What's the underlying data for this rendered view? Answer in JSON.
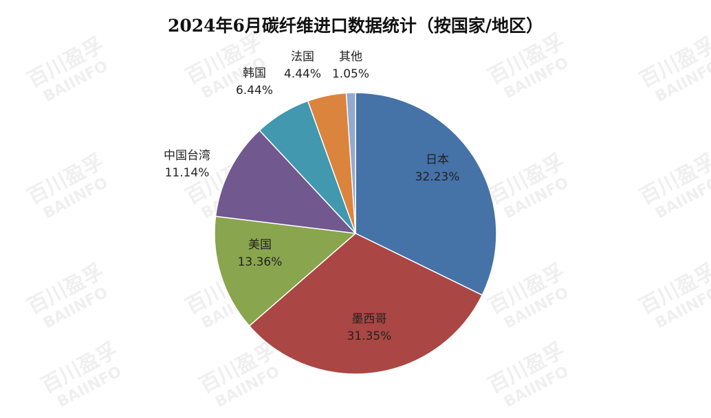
{
  "watermark": "百川盈孚 BAIINFO",
  "chart_data": {
    "type": "pie",
    "title": "2024年6月碳纤维进口数据统计（按国家/地区）",
    "start_angle": "12 o'clock, clockwise",
    "slices": [
      {
        "label": "日本",
        "value": 32.23,
        "display": "32.23%",
        "color": "#4572A7"
      },
      {
        "label": "墨西哥",
        "value": 31.35,
        "display": "31.35%",
        "color": "#AA4643"
      },
      {
        "label": "美国",
        "value": 13.36,
        "display": "13.36%",
        "color": "#89A54E"
      },
      {
        "label": "中国台湾",
        "value": 11.14,
        "display": "11.14%",
        "color": "#71588F"
      },
      {
        "label": "韩国",
        "value": 6.44,
        "display": "6.44%",
        "color": "#4198AF"
      },
      {
        "label": "法国",
        "value": 4.44,
        "display": "4.44%",
        "color": "#DB843D"
      },
      {
        "label": "其他",
        "value": 1.05,
        "display": "1.05%",
        "color": "#93A9CF"
      }
    ]
  }
}
